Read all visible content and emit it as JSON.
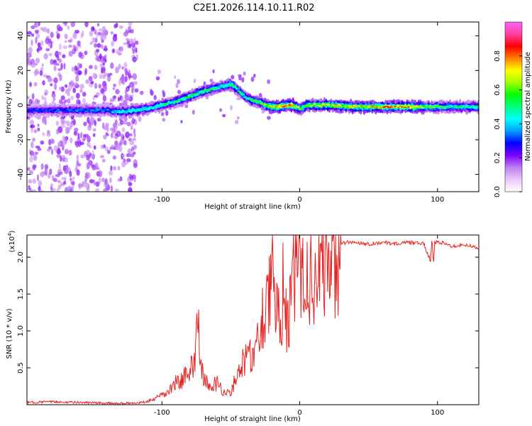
{
  "title": "C2E1.2026.114.10.11.R02",
  "chart_data": [
    {
      "type": "heatmap",
      "title": "C2E1.2026.114.10.11.R02",
      "xlabel": "Height of straight line (km)",
      "ylabel": "Frequency (Hz)",
      "xlim": [
        -198,
        130
      ],
      "ylim": [
        -50,
        48
      ],
      "x_ticks": [
        -100,
        0,
        100
      ],
      "y_ticks": [
        -40,
        -20,
        0,
        20,
        40
      ],
      "x_tick_labels": [
        "-100",
        "0",
        "100"
      ],
      "y_tick_labels": [
        "-40",
        "-20",
        "0",
        "20",
        "40"
      ],
      "ridge": {
        "x": [
          -198,
          -180,
          -160,
          -140,
          -130,
          -120,
          -110,
          -100,
          -90,
          -80,
          -70,
          -60,
          -55,
          -50,
          -45,
          -40,
          -35,
          -30,
          -25,
          -20,
          -15,
          -10,
          -5,
          0,
          5,
          10,
          20,
          40,
          60,
          80,
          90,
          95,
          100,
          110,
          120,
          130
        ],
        "frequency": [
          -3,
          -3,
          -3,
          -3,
          -4,
          -3,
          -2,
          0,
          2,
          5,
          8,
          10,
          11,
          12,
          9,
          5,
          3,
          2,
          0,
          -1,
          -1,
          0,
          0,
          -2,
          0,
          0,
          0,
          -1,
          -1,
          -1,
          -1,
          -1,
          -1,
          -1,
          -1,
          -1
        ],
        "amplitude": [
          0.3,
          0.3,
          0.35,
          0.35,
          0.45,
          0.5,
          0.45,
          0.5,
          0.5,
          0.5,
          0.55,
          0.5,
          0.5,
          0.55,
          0.5,
          0.5,
          0.5,
          0.55,
          0.6,
          0.75,
          0.8,
          0.8,
          0.75,
          0.6,
          0.6,
          0.65,
          0.7,
          0.7,
          0.75,
          0.8,
          0.6,
          0.6,
          0.55,
          0.5,
          0.5,
          0.5
        ]
      },
      "colorbar": {
        "label": "Normalized spectral amplitude",
        "range": [
          0.0,
          1.0
        ],
        "ticks": [
          0.0,
          0.2,
          0.4,
          0.6,
          0.8
        ],
        "tick_labels": [
          "0.0",
          "0.2",
          "0.4",
          "0.6",
          "0.8"
        ],
        "colors": [
          "#ffffff",
          "#e8c8f8",
          "#c080f0",
          "#8000ff",
          "#0000ff",
          "#00a0ff",
          "#00ffff",
          "#00ff80",
          "#00ff00",
          "#a0ff00",
          "#ffff00",
          "#ff8000",
          "#ff0000",
          "#ff40a0",
          "#ff60ff"
        ]
      }
    },
    {
      "type": "line",
      "xlabel": "Height of straight line (km)",
      "ylabel": "SNR (10 * v/v)",
      "scale_label": "(x10",
      "scale_exponent": "4",
      "xlim": [
        -198,
        130
      ],
      "ylim": [
        0,
        2.3
      ],
      "x_ticks": [
        -100,
        0,
        100
      ],
      "y_ticks": [
        0.5,
        1.0,
        1.5,
        2.0
      ],
      "x_tick_labels": [
        "-100",
        "0",
        "100"
      ],
      "y_tick_labels": [
        "0.5",
        "1.0",
        "1.5",
        "2.0"
      ],
      "line_color": "#e8211f",
      "series": [
        {
          "name": "SNR",
          "x": [
            -198,
            -180,
            -160,
            -140,
            -120,
            -110,
            -100,
            -95,
            -90,
            -85,
            -80,
            -78,
            -76,
            -74,
            -72,
            -70,
            -65,
            -60,
            -55,
            -50,
            -45,
            -40,
            -35,
            -33,
            -30,
            -27,
            -25,
            -22,
            -20,
            -18,
            -16,
            -14,
            -12,
            -10,
            -8,
            -6,
            -4,
            -2,
            0,
            2,
            4,
            6,
            8,
            10,
            12,
            14,
            16,
            18,
            20,
            25,
            30,
            35,
            40,
            50,
            60,
            70,
            80,
            90,
            95,
            96,
            97,
            98,
            100,
            105,
            110,
            120,
            130
          ],
          "snr": [
            0.03,
            0.04,
            0.03,
            0.02,
            0.02,
            0.04,
            0.1,
            0.15,
            0.25,
            0.3,
            0.35,
            0.45,
            0.6,
            1.15,
            0.5,
            0.3,
            0.2,
            0.25,
            0.15,
            0.12,
            0.4,
            0.5,
            0.6,
            0.8,
            1.0,
            1.3,
            1.6,
            1.8,
            2.2,
            1.1,
            1.4,
            1.2,
            1.9,
            1.3,
            1.2,
            1.5,
            2.0,
            1.8,
            2.2,
            1.9,
            1.6,
            2.0,
            2.1,
            2.0,
            2.1,
            2.05,
            2.1,
            2.15,
            2.15,
            2.15,
            2.18,
            2.2,
            2.2,
            2.18,
            2.2,
            2.18,
            2.2,
            2.18,
            1.95,
            2.25,
            1.9,
            2.2,
            2.22,
            2.18,
            2.15,
            2.17,
            2.12
          ]
        }
      ]
    }
  ]
}
